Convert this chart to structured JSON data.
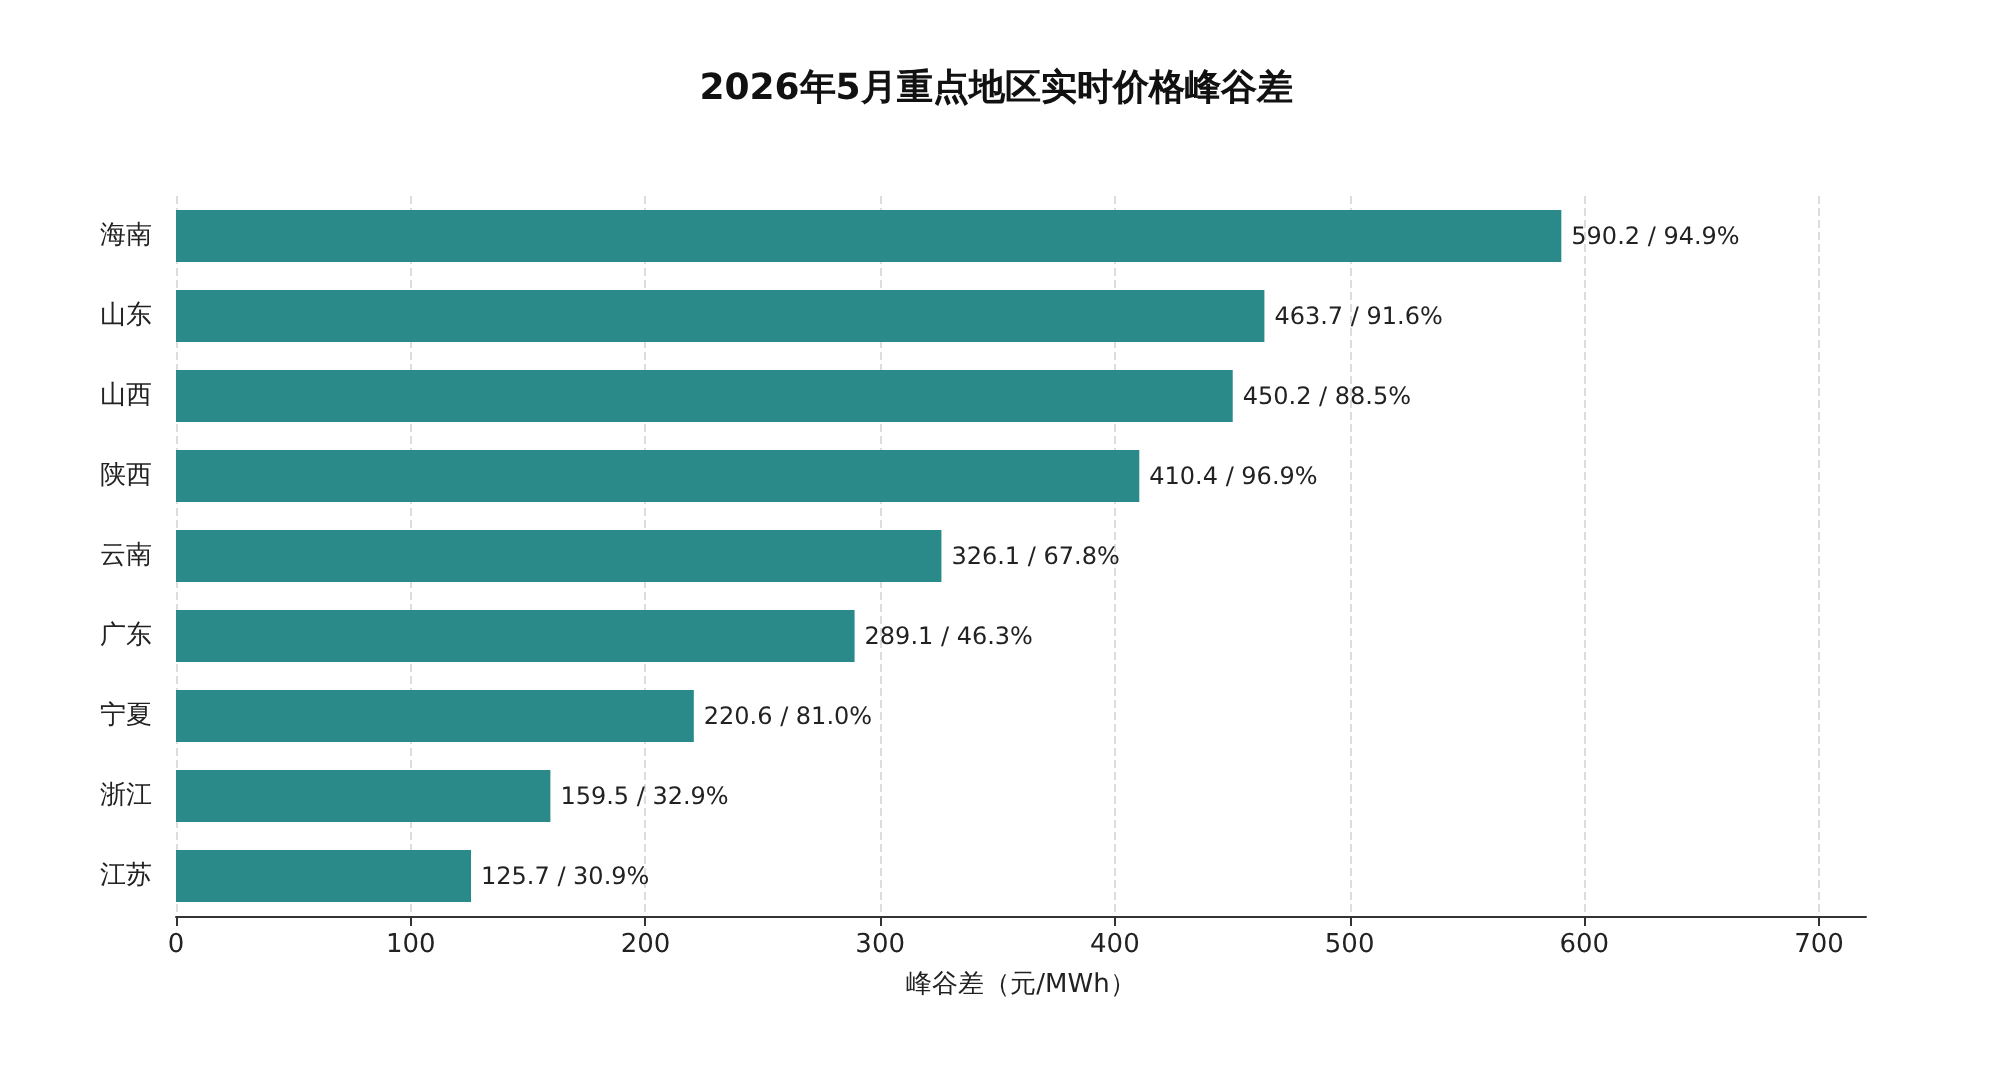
{
  "chart_data": {
    "type": "bar",
    "orientation": "horizontal",
    "title": "2026年5月重点地区实时价格峰谷差",
    "xlabel": "峰谷差（元/MWh）",
    "categories": [
      "海南",
      "山东",
      "山西",
      "陕西",
      "云南",
      "广东",
      "宁夏",
      "浙江",
      "江苏"
    ],
    "values": [
      590.2,
      463.7,
      450.2,
      410.4,
      326.1,
      289.1,
      220.6,
      159.5,
      125.7
    ],
    "value_labels": [
      "590.2 / 94.9%",
      "463.7 / 91.6%",
      "450.2 / 88.5%",
      "410.4 / 96.9%",
      "326.1 / 67.8%",
      "289.1 / 46.3%",
      "220.6 / 81.0%",
      "159.5 / 32.9%",
      "125.7 / 30.9%"
    ],
    "color": "#2a8a8a",
    "xlim": [
      0,
      720
    ],
    "xticks": [
      0,
      100,
      200,
      300,
      400,
      500,
      600,
      700
    ],
    "grid": "x"
  }
}
